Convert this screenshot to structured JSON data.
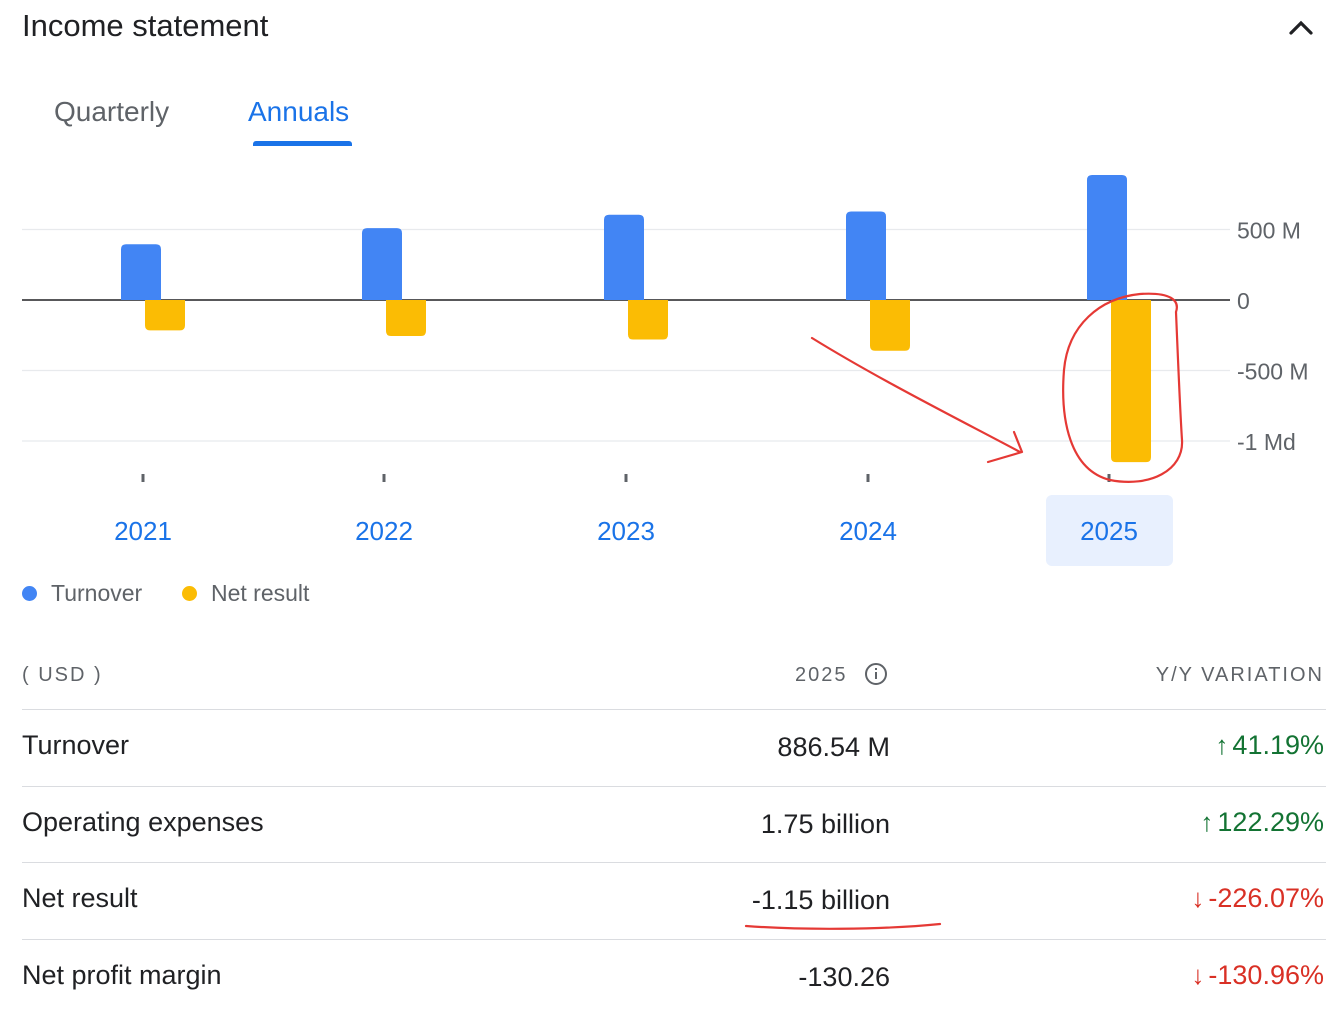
{
  "header": {
    "title": "Income statement",
    "collapse_icon": "chevron-up-icon"
  },
  "tabs": [
    {
      "label": "Quarterly",
      "active": false
    },
    {
      "label": "Annuals",
      "active": true
    }
  ],
  "colors": {
    "turnover": "#4285f4",
    "net_result": "#fbbc04",
    "accent": "#1a73e8",
    "positive": "#137333",
    "negative": "#d93025",
    "selected_year_bg": "#e8f0fe",
    "annotation": "#e53935"
  },
  "chart_data": {
    "type": "bar",
    "categories": [
      "2021",
      "2022",
      "2023",
      "2024",
      "2025"
    ],
    "selected_category": "2025",
    "series": [
      {
        "name": "Turnover",
        "values": [
          395,
          510,
          605,
          628,
          886.54
        ]
      },
      {
        "name": "Net result",
        "values": [
          -215,
          -255,
          -280,
          -360,
          -1150
        ]
      }
    ],
    "y_ticks": [
      {
        "value": 500,
        "label": "500 M"
      },
      {
        "value": 0,
        "label": "0"
      },
      {
        "value": -500,
        "label": "-500 M"
      },
      {
        "value": -1000,
        "label": "-1 Md"
      }
    ],
    "ylim": [
      -1250,
      900
    ],
    "grid": true,
    "legend": "bottom-left"
  },
  "legend": [
    {
      "label": "Turnover"
    },
    {
      "label": "Net result"
    }
  ],
  "table": {
    "unit_header": "( USD )",
    "year_header": "2025",
    "variation_header": "Y/Y VARIATION",
    "rows": [
      {
        "label": "Turnover",
        "value": "886.54 M",
        "variation": "41.19%",
        "direction": "up"
      },
      {
        "label": "Operating expenses",
        "value": "1.75 billion",
        "variation": "122.29%",
        "direction": "up"
      },
      {
        "label": "Net result",
        "value": "-1.15 billion",
        "variation": "-226.07%",
        "direction": "down"
      },
      {
        "label": "Net profit margin",
        "value": "-130.26",
        "variation": "-130.96%",
        "direction": "down"
      }
    ]
  }
}
